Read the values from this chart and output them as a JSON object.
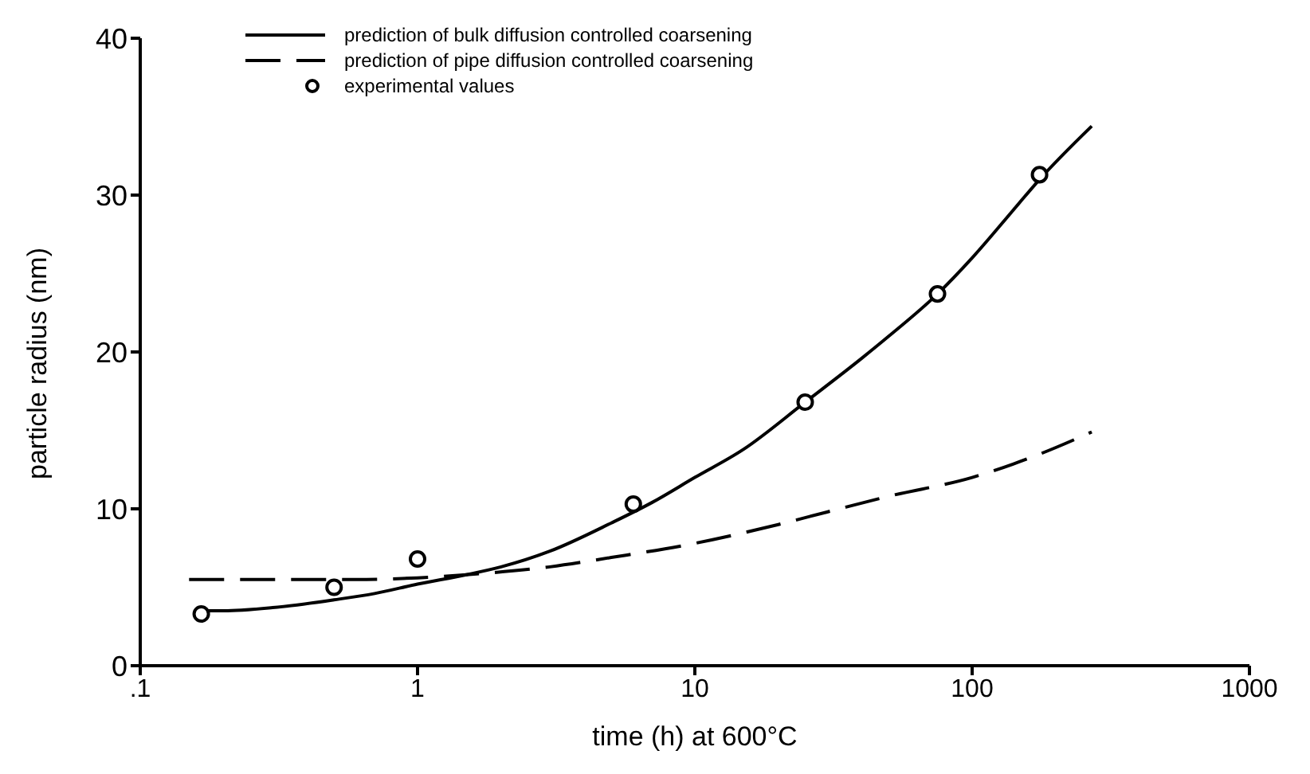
{
  "chart_data": {
    "type": "line",
    "xlabel": "time (h) at 600°C",
    "ylabel": "particle radius (nm)",
    "log": "x",
    "xlim": [
      0.1,
      1000
    ],
    "xticks": [
      {
        "value": 0.1,
        "label": ".1"
      },
      1,
      10,
      100,
      1000
    ],
    "ylim": [
      0,
      40
    ],
    "yticks": [
      0,
      10,
      20,
      30,
      40
    ],
    "grid": false,
    "legend": "top left",
    "series": [
      {
        "name": "prediction of bulk diffusion controlled coarsening",
        "color": "#000000",
        "line_style": "solid",
        "marker": "none",
        "x": [
          0.16,
          0.2,
          0.3,
          0.5,
          0.7,
          1,
          1.5,
          2,
          3,
          5,
          7,
          10,
          15,
          25,
          40,
          50,
          75,
          100,
          140,
          175,
          270
        ],
        "values": [
          3.5,
          3.5,
          3.7,
          4.2,
          4.6,
          5.2,
          5.8,
          6.3,
          7.3,
          9.1,
          10.4,
          12,
          13.8,
          16.8,
          19.6,
          21,
          23.7,
          26,
          29,
          31,
          34.4
        ]
      },
      {
        "name": "prediction of pipe diffusion controlled coarsening",
        "color": "#000000",
        "line_style": "dashed",
        "marker": "none",
        "x": [
          0.15,
          0.3,
          0.6,
          1,
          1.5,
          3,
          5,
          10,
          20,
          30,
          50,
          100,
          170,
          270
        ],
        "values": [
          5.5,
          5.5,
          5.5,
          5.6,
          5.8,
          6.3,
          6.9,
          7.8,
          9,
          9.8,
          10.8,
          12,
          13.4,
          14.9
        ]
      },
      {
        "name": "experimental values",
        "type": "scatter",
        "color": "#000000",
        "marker": "circle",
        "x": [
          0.166,
          0.5,
          1,
          6,
          25,
          75,
          175
        ],
        "values": [
          3.3,
          5,
          6.8,
          10.3,
          16.8,
          23.7,
          31.3
        ]
      }
    ]
  }
}
